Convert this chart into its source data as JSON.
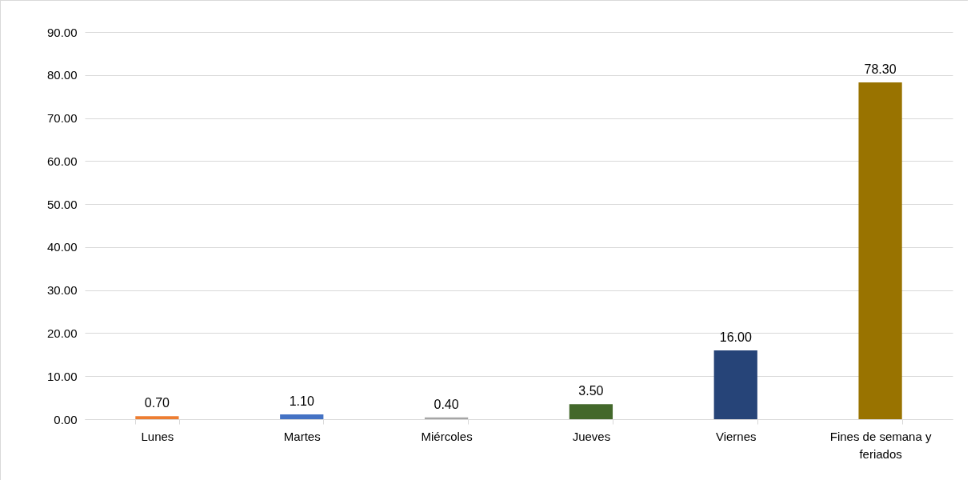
{
  "chart_data": {
    "type": "bar",
    "categories": [
      "Lunes",
      "Martes",
      "Miércoles",
      "Jueves",
      "Viernes",
      "Fines de semana y feriados"
    ],
    "values": [
      0.7,
      1.1,
      0.4,
      3.5,
      16.0,
      78.3
    ],
    "colors": [
      "#ed7d31",
      "#4472c4",
      "#a5a5a5",
      "#43682b",
      "#264478",
      "#997300"
    ],
    "value_labels": [
      "0.70",
      "1.10",
      "0.40",
      "3.50",
      "16.00",
      "78.30"
    ],
    "ylim": [
      0,
      90
    ],
    "yticks": [
      {
        "value": 0,
        "label": "0.00"
      },
      {
        "value": 10,
        "label": "10.00"
      },
      {
        "value": 20,
        "label": "20.00"
      },
      {
        "value": 30,
        "label": "30.00"
      },
      {
        "value": 40,
        "label": "40.00"
      },
      {
        "value": 50,
        "label": "50.00"
      },
      {
        "value": 60,
        "label": "60.00"
      },
      {
        "value": 70,
        "label": "70.00"
      },
      {
        "value": 80,
        "label": "80.00"
      },
      {
        "value": 90,
        "label": "90.00"
      }
    ],
    "grid": "y"
  }
}
